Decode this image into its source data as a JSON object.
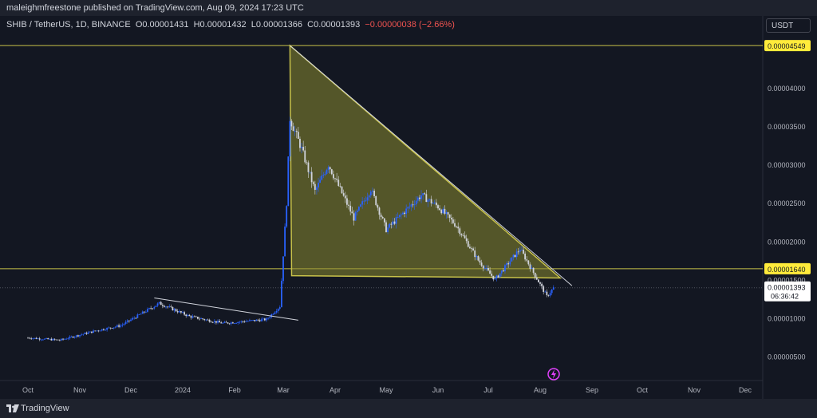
{
  "header": {
    "publisher_line": "maleighmfreestone published on TradingView.com, Aug 09, 2024 17:23 UTC"
  },
  "symbol": {
    "name": "SHIB / TetherUS, 1D, BINANCE",
    "open": "O0.00001431",
    "high": "H0.00001432",
    "low": "L0.00001366",
    "close": "C0.00001393",
    "change": "−0.00000038 (−2.66%)"
  },
  "price_unit": "USDT",
  "countdown": "06:36:42",
  "footer": {
    "brand": "TradingView"
  },
  "colors": {
    "background": "#131722",
    "up": "#2962ff",
    "down": "#d1d4dc",
    "triangle_fill": "#8a8a30",
    "level_line": "#c8c24a",
    "label_bg": "#ffeb3b"
  },
  "chart_data": {
    "type": "candlestick",
    "x_ticks": [
      "Oct",
      "Nov",
      "Dec",
      "2024",
      "Feb",
      "Mar",
      "Apr",
      "May",
      "Jun",
      "Jul",
      "Aug",
      "Sep",
      "Oct",
      "Nov",
      "Dec"
    ],
    "y_ticks": [
      "0.00004000",
      "0.00003500",
      "0.00003000",
      "0.00002500",
      "0.00002000",
      "0.00001500",
      "0.00001000",
      "0.00000500"
    ],
    "price_labels": [
      {
        "value": 4.549e-05,
        "text": "0.00004549"
      },
      {
        "value": 1.64e-05,
        "text": "0.00001640"
      },
      {
        "value": 1.393e-05,
        "text": "0.00001393"
      }
    ],
    "horizontal_levels": [
      4.549e-05,
      1.64e-05
    ],
    "triangle": {
      "apex": {
        "date": "2024-03-05",
        "price": 4.549e-05
      },
      "lower_left": {
        "date": "2024-03-06",
        "price": 1.55e-05
      },
      "lower_right": {
        "date": "2024-08-13",
        "price": 1.52e-05
      }
    },
    "trendlines": [
      {
        "from": {
          "date": "2024-03-05",
          "price": 4.549e-05
        },
        "to": {
          "date": "2024-08-20",
          "price": 1.42e-05
        }
      },
      {
        "from": {
          "date": "2023-12-15",
          "price": 1.26e-05
        },
        "to": {
          "date": "2024-03-10",
          "price": 9.7e-06
        }
      }
    ],
    "key_points": [
      {
        "date": "2023-10-01",
        "price": 7.4e-06
      },
      {
        "date": "2023-10-20",
        "price": 7.1e-06
      },
      {
        "date": "2023-11-10",
        "price": 8.3e-06
      },
      {
        "date": "2023-11-25",
        "price": 9e-06
      },
      {
        "date": "2023-12-18",
        "price": 1.19e-05
      },
      {
        "date": "2024-01-05",
        "price": 1.02e-05
      },
      {
        "date": "2024-01-25",
        "price": 9.3e-06
      },
      {
        "date": "2024-02-20",
        "price": 9.8e-06
      },
      {
        "date": "2024-02-28",
        "price": 1.15e-05
      },
      {
        "date": "2024-03-03",
        "price": 2.5e-05
      },
      {
        "date": "2024-03-05",
        "price": 3.6e-05
      },
      {
        "date": "2024-03-12",
        "price": 3.2e-05
      },
      {
        "date": "2024-03-20",
        "price": 2.65e-05
      },
      {
        "date": "2024-03-28",
        "price": 3e-05
      },
      {
        "date": "2024-04-12",
        "price": 2.3e-05
      },
      {
        "date": "2024-04-22",
        "price": 2.68e-05
      },
      {
        "date": "2024-05-01",
        "price": 2.15e-05
      },
      {
        "date": "2024-05-22",
        "price": 2.6e-05
      },
      {
        "date": "2024-06-01",
        "price": 2.45e-05
      },
      {
        "date": "2024-06-12",
        "price": 2.2e-05
      },
      {
        "date": "2024-06-25",
        "price": 1.75e-05
      },
      {
        "date": "2024-07-05",
        "price": 1.5e-05
      },
      {
        "date": "2024-07-20",
        "price": 1.9e-05
      },
      {
        "date": "2024-08-05",
        "price": 1.28e-05
      },
      {
        "date": "2024-08-09",
        "price": 1.39e-05
      }
    ]
  }
}
